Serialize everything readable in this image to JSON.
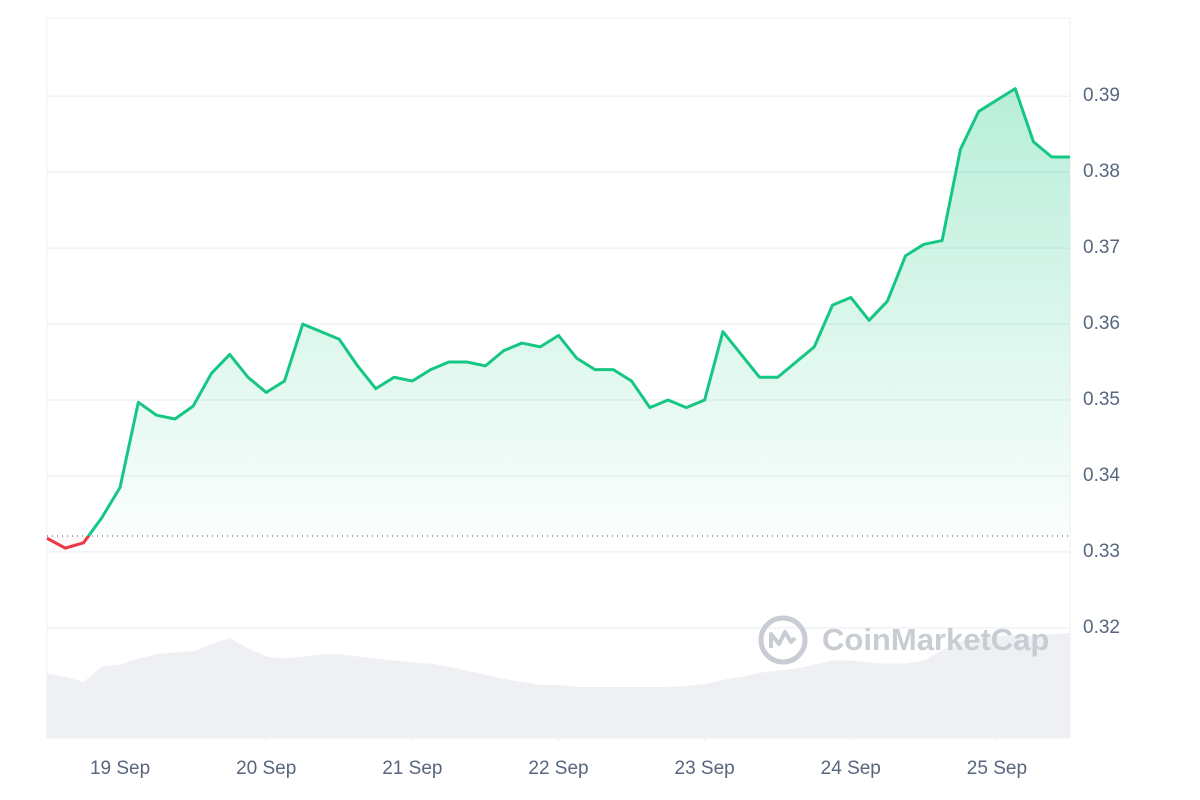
{
  "chart_data": {
    "type": "line",
    "baseline": 0.3321,
    "up_color": "#16c784",
    "down_color": "#ea3943",
    "watermark": "CoinMarketCap",
    "xlim": [
      0,
      56
    ],
    "xticks": [
      {
        "value": 4,
        "label": "19 Sep"
      },
      {
        "value": 12,
        "label": "20 Sep"
      },
      {
        "value": 20,
        "label": "21 Sep"
      },
      {
        "value": 28,
        "label": "22 Sep"
      },
      {
        "value": 36,
        "label": "23 Sep"
      },
      {
        "value": 44,
        "label": "24 Sep"
      },
      {
        "value": 52,
        "label": "25 Sep"
      }
    ],
    "ylim": [
      0.3055,
      0.4003
    ],
    "yticks": [
      0.32,
      0.33,
      0.34,
      0.35,
      0.36,
      0.37,
      0.38,
      0.39
    ],
    "grid": true,
    "values": [
      0.3318,
      0.3305,
      0.3312,
      0.3345,
      0.3385,
      0.3497,
      0.348,
      0.3475,
      0.3492,
      0.3535,
      0.356,
      0.353,
      0.351,
      0.3525,
      0.36,
      0.359,
      0.358,
      0.3545,
      0.3515,
      0.353,
      0.3525,
      0.354,
      0.355,
      0.355,
      0.3545,
      0.3565,
      0.3575,
      0.357,
      0.3585,
      0.3555,
      0.354,
      0.354,
      0.3525,
      0.349,
      0.35,
      0.349,
      0.35,
      0.359,
      0.356,
      0.353,
      0.353,
      0.355,
      0.357,
      0.3625,
      0.3635,
      0.3605,
      0.363,
      0.369,
      0.3705,
      0.371,
      0.383,
      0.388,
      0.3895,
      0.391,
      0.384,
      0.382,
      0.382
    ],
    "volume": {
      "color": "#eef0f3",
      "values": [
        63,
        60,
        55,
        70,
        72,
        78,
        82,
        84,
        85,
        92,
        98,
        88,
        80,
        78,
        80,
        82,
        82,
        80,
        78,
        76,
        74,
        73,
        70,
        66,
        62,
        58,
        55,
        52,
        52,
        50,
        50,
        50,
        50,
        50,
        50,
        51,
        53,
        57,
        60,
        64,
        66,
        68,
        72,
        76,
        76,
        74,
        73,
        73,
        76,
        86,
        95,
        98,
        100,
        101,
        100,
        102,
        103
      ]
    }
  }
}
